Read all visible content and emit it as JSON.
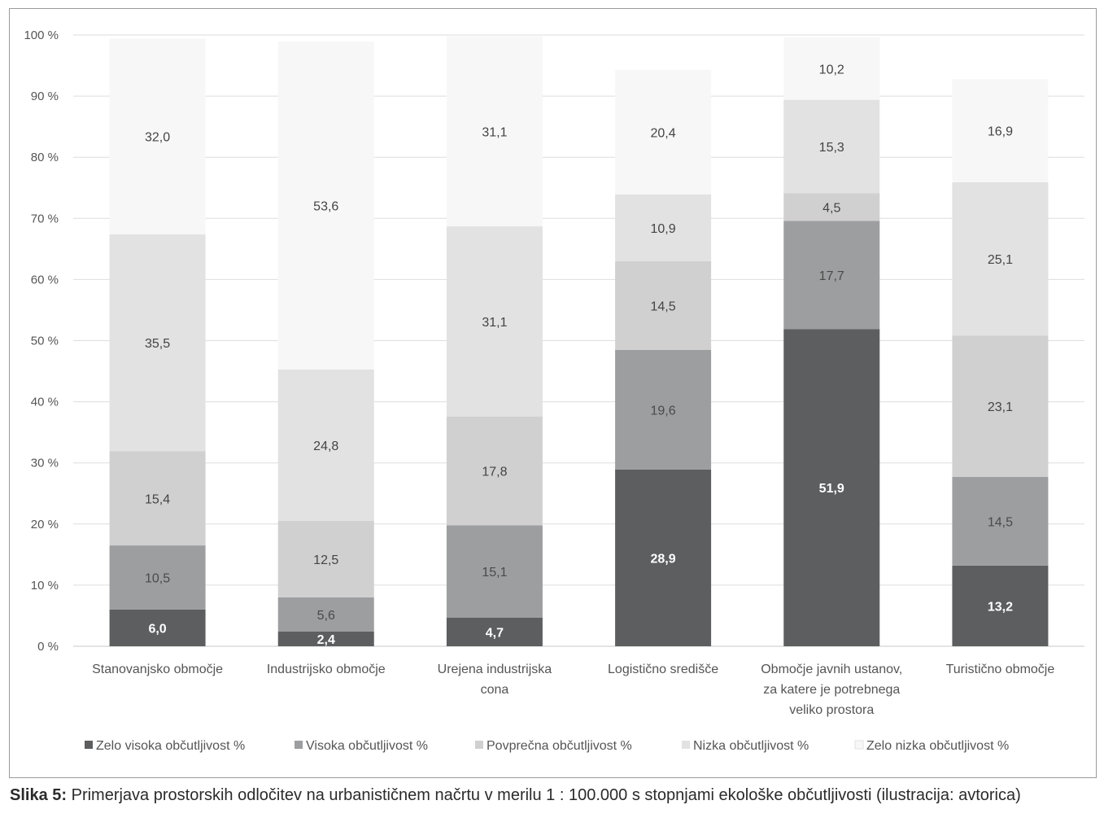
{
  "chart_data": {
    "type": "bar",
    "stacked": true,
    "categories": [
      [
        "Stanovanjsko območje"
      ],
      [
        "Industrijsko območje"
      ],
      [
        "Urejena industrijska",
        "cona"
      ],
      [
        "Logistično središče"
      ],
      [
        "Območje javnih ustanov,",
        "za katere je potrebnega",
        "veliko prostora"
      ],
      [
        "Turistično območje"
      ]
    ],
    "series": [
      {
        "name": "Zelo visoka občutljivost %",
        "color": "#5d5e60",
        "label_color": "#ffffff",
        "values": [
          6.0,
          2.4,
          4.7,
          28.9,
          51.9,
          13.2
        ]
      },
      {
        "name": "Visoka občutljivost %",
        "color": "#9d9ea0",
        "label_color": "#4a4a4a",
        "values": [
          10.5,
          5.6,
          15.1,
          19.6,
          17.7,
          14.5
        ]
      },
      {
        "name": "Povprečna občutljivost %",
        "color": "#d0d0d1",
        "label_color": "#444444",
        "values": [
          15.4,
          12.5,
          17.8,
          14.5,
          4.5,
          23.1
        ]
      },
      {
        "name": "Nizka občutljivost %",
        "color": "#e2e2e3",
        "label_color": "#444444",
        "values": [
          35.5,
          24.8,
          31.1,
          10.9,
          15.3,
          25.1
        ]
      },
      {
        "name": "Zelo nizka občutljivost %",
        "color": "#f7f7f7",
        "label_color": "#444444",
        "values": [
          32.0,
          53.6,
          31.1,
          20.4,
          10.2,
          16.9
        ]
      }
    ],
    "value_labels": [
      [
        "6,0",
        "2,4",
        "4,7",
        "28,9",
        "51,9",
        "13,2"
      ],
      [
        "10,5",
        "5,6",
        "15,1",
        "19,6",
        "17,7",
        "14,5"
      ],
      [
        "15,4",
        "12,5",
        "17,8",
        "14,5",
        "4,5",
        "23,1"
      ],
      [
        "35,5",
        "24,8",
        "31,1",
        "10,9",
        "15,3",
        "25,1"
      ],
      [
        "32,0",
        "53,6",
        "31,1",
        "20,4",
        "10,2",
        "16,9"
      ]
    ],
    "yticks": [
      "0 %",
      "10 %",
      "20 %",
      "30 %",
      "40 %",
      "50 %",
      "60 %",
      "70 %",
      "80 %",
      "90 %",
      "100 %"
    ],
    "ylim": [
      0,
      100
    ],
    "grid": true,
    "legend_position": "bottom"
  },
  "caption": {
    "lead": "Slika 5:",
    "text": " Primerjava prostorskih odločitev na urbanističnem načrtu v merilu 1 : 100.000 s stopnjami ekološke občutljivosti (ilustracija: avtorica)"
  }
}
